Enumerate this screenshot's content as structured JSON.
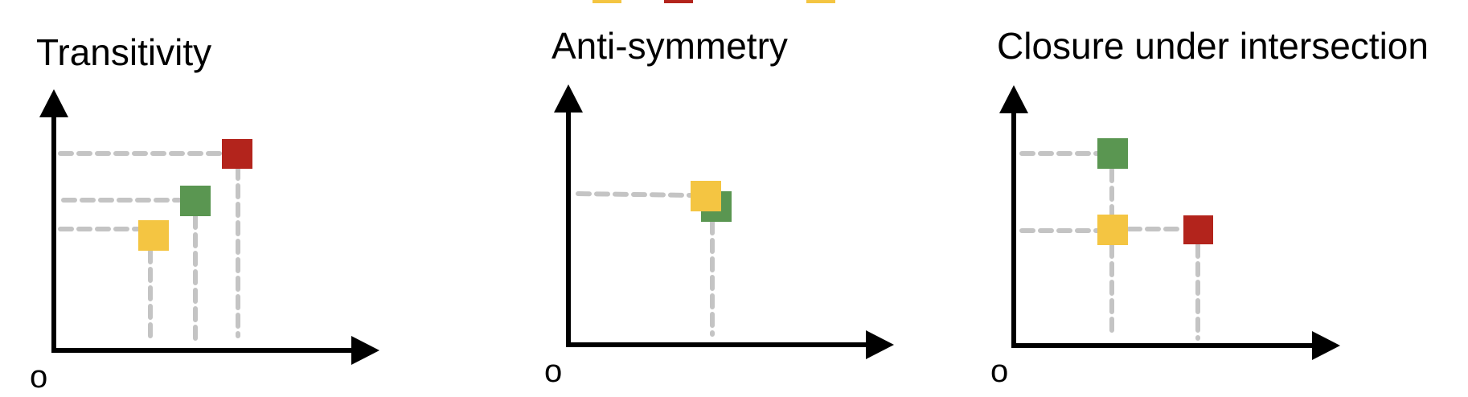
{
  "colors": {
    "yellow": "#F4C542",
    "red": "#B3241C",
    "green": "#5A9651",
    "guide": "#C4C4C4",
    "axis": "#000000"
  },
  "panels": [
    {
      "title": "Transitivity",
      "origin_label": "o",
      "points": [
        {
          "color": "yellow"
        },
        {
          "color": "green"
        },
        {
          "color": "red"
        }
      ]
    },
    {
      "title": "Anti-symmetry",
      "origin_label": "o",
      "points": [
        {
          "color": "green"
        },
        {
          "color": "yellow"
        }
      ]
    },
    {
      "title": "Closure under intersection",
      "origin_label": "o",
      "points": [
        {
          "color": "green"
        },
        {
          "color": "yellow"
        },
        {
          "color": "red"
        }
      ]
    }
  ],
  "legend_top": {
    "swatches": [
      {
        "color": "yellow"
      },
      {
        "color": "red"
      },
      {
        "color": "yellow"
      }
    ]
  }
}
